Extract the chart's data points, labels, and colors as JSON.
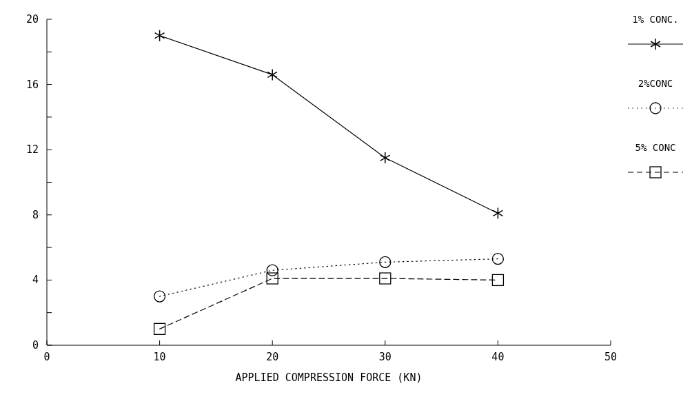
{
  "chart_data": {
    "type": "line",
    "xlabel": "APPLIED COMPRESSION FORCE (KN)",
    "x": [
      10,
      20,
      30,
      40
    ],
    "series": [
      {
        "name": "1% CONC.",
        "color": "#000000",
        "marker": "cross",
        "line_style": "solid",
        "values": [
          19.0,
          16.6,
          11.5,
          8.1
        ]
      },
      {
        "name": "2%CONC",
        "color": "#000000",
        "marker": "circle",
        "line_style": "dotted",
        "values": [
          3.0,
          4.6,
          5.1,
          5.3
        ]
      },
      {
        "name": "5% CONC",
        "color": "#000000",
        "marker": "square",
        "line_style": "dashed",
        "values": [
          1.0,
          4.1,
          4.1,
          4.0
        ]
      }
    ],
    "xlim": [
      0,
      50
    ],
    "xticks": [
      0,
      10,
      20,
      30,
      40,
      50
    ],
    "ylim": [
      0,
      20
    ],
    "yticks": [
      0,
      {
        "value": 2,
        "label": null
      },
      4,
      {
        "value": 6,
        "label": null
      },
      8,
      {
        "value": 10,
        "label": null
      },
      12,
      {
        "value": 14,
        "label": null
      },
      16,
      {
        "value": 18,
        "label": null
      },
      20
    ],
    "grid": false,
    "legend": "top right"
  }
}
